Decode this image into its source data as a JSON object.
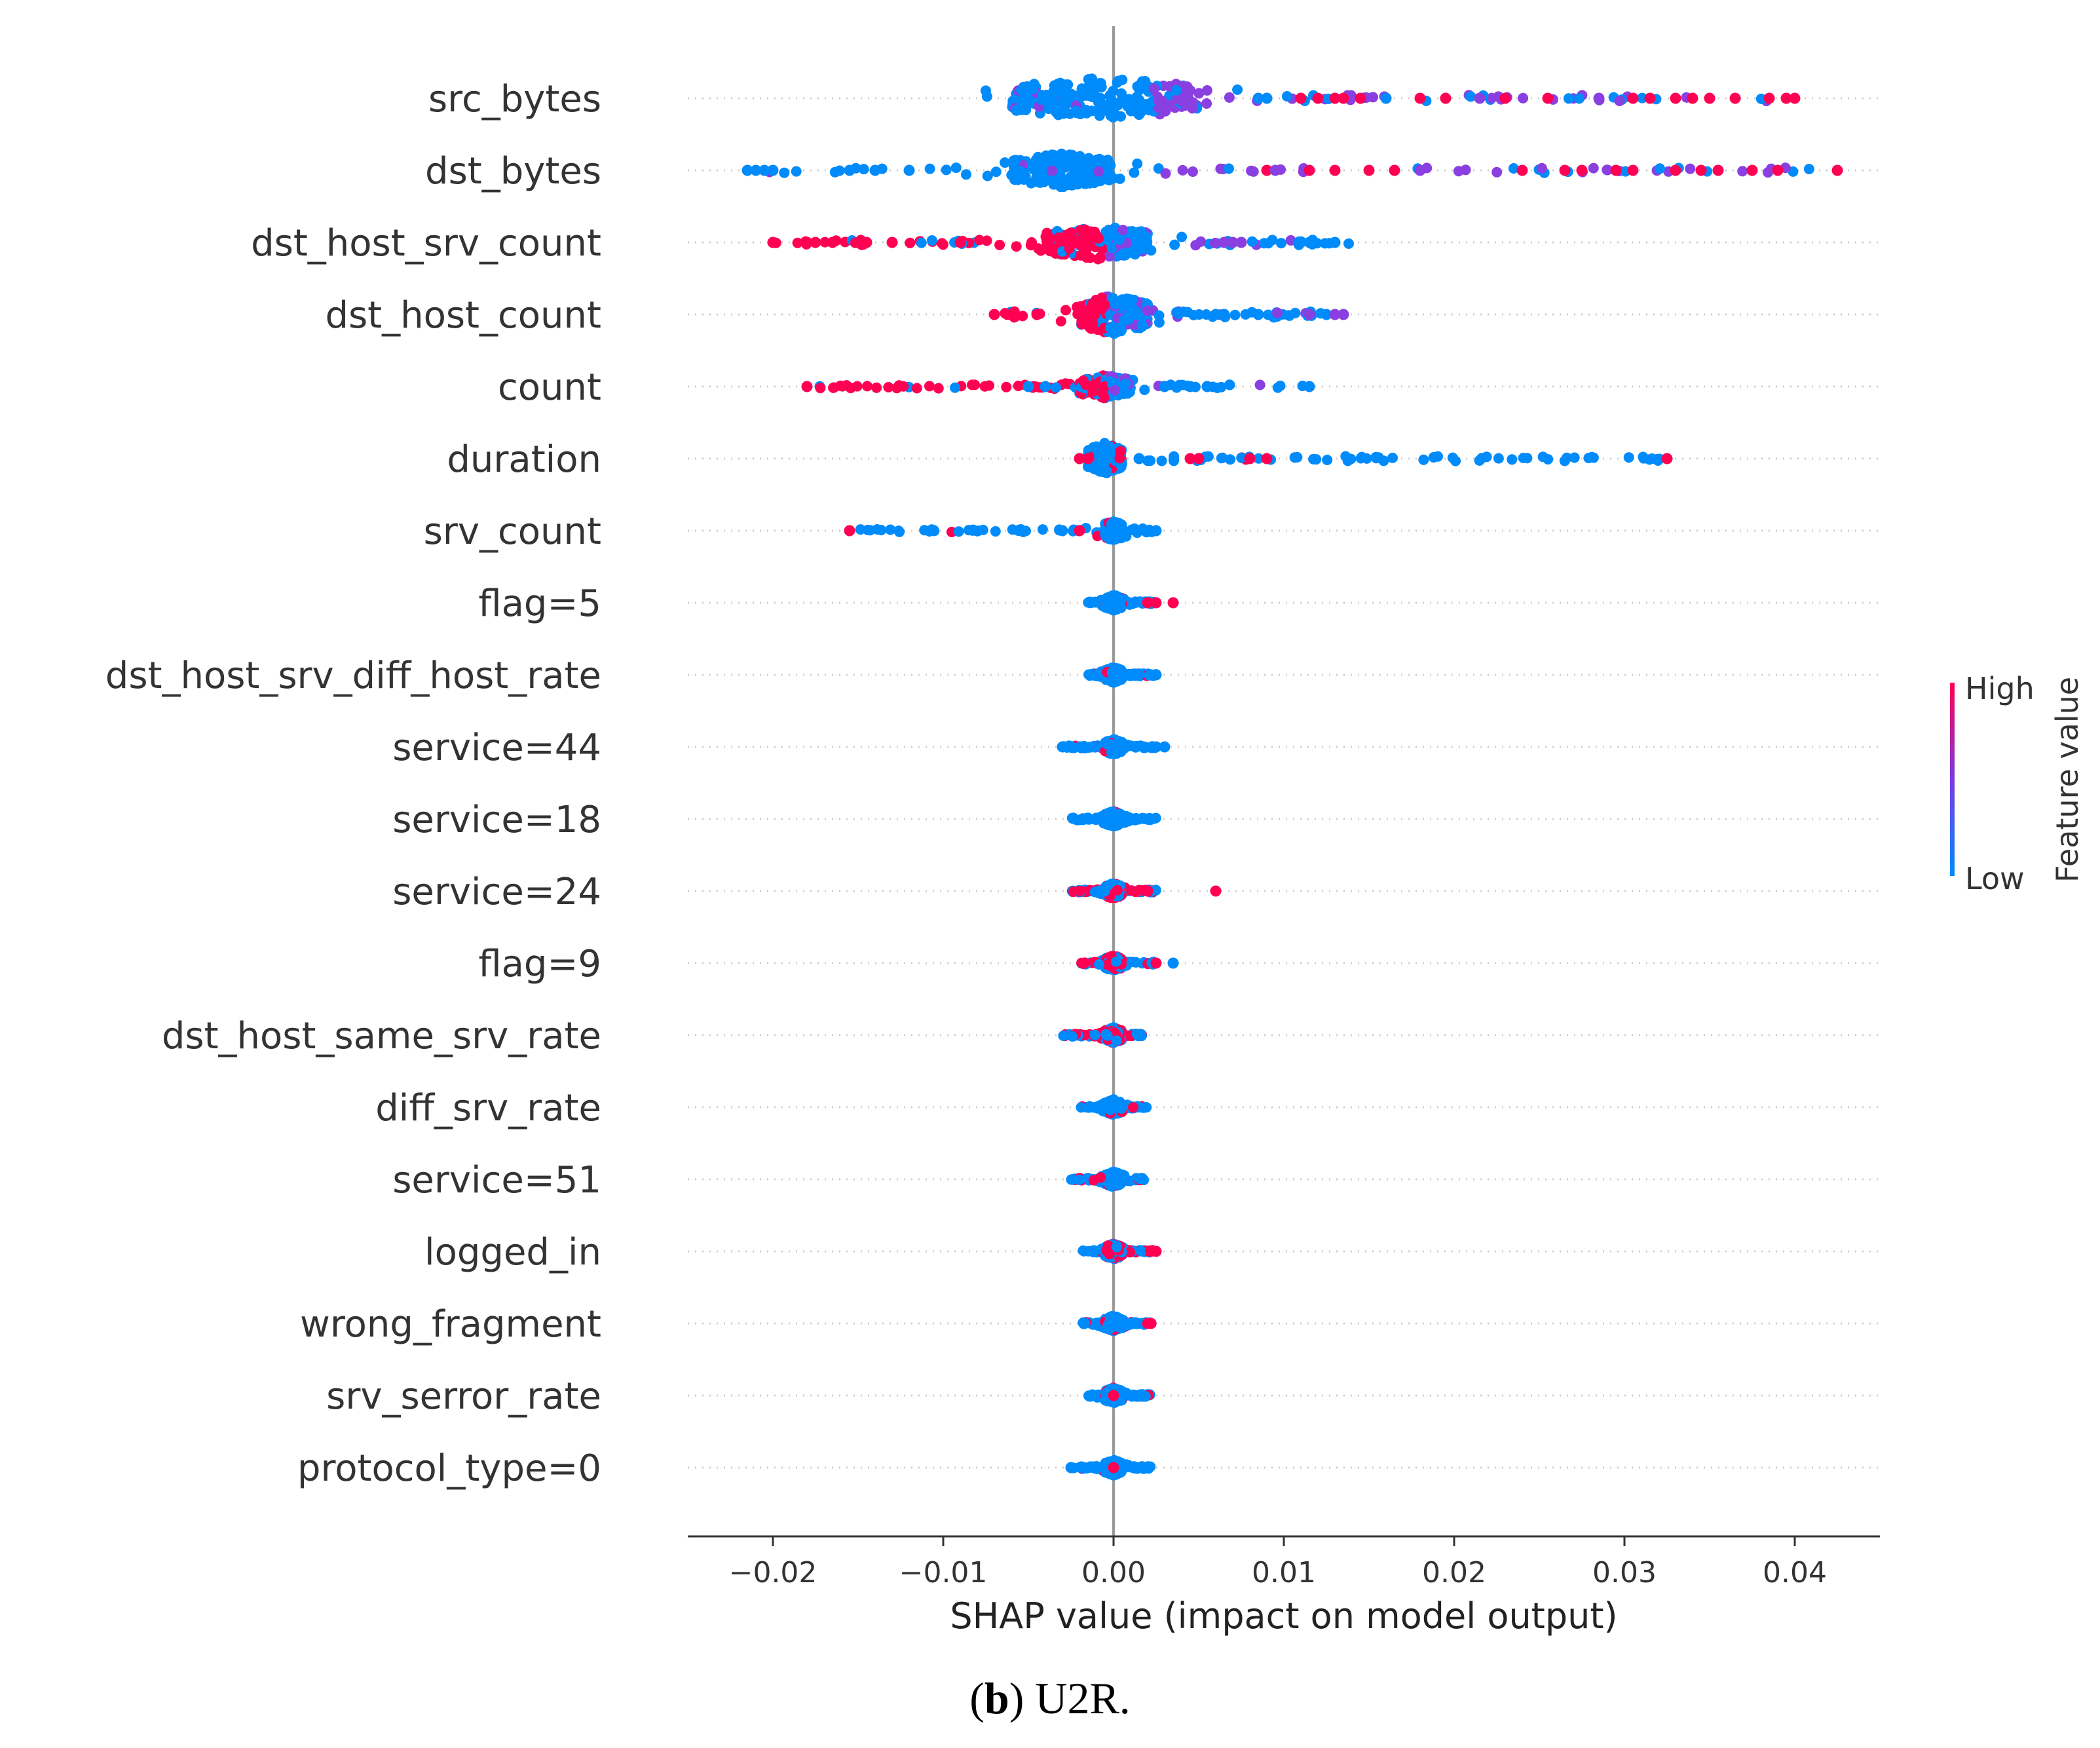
{
  "chart_data": {
    "type": "scatter",
    "subtype": "shap-beeswarm",
    "caption_bold": "b",
    "caption_rest": ") U2R.",
    "caption_open": "(",
    "xlabel": "SHAP value (impact on model output)",
    "xlim": [
      -0.025,
      0.045
    ],
    "xticks": [
      -0.02,
      -0.01,
      0.0,
      0.01,
      0.02,
      0.03,
      0.04
    ],
    "xtick_labels": [
      "−0.02",
      "−0.01",
      "0.00",
      "0.01",
      "0.02",
      "0.03",
      "0.04"
    ],
    "colorbar": {
      "label": "Feature value",
      "high": "High",
      "low": "Low",
      "high_color": "#ff0052",
      "low_color": "#008bfb"
    },
    "features": [
      {
        "name": "src_bytes",
        "min": -0.009,
        "max": 0.04,
        "lo": -0.006,
        "hi": 0.005,
        "spread": 32,
        "extras": [
          [
            0.011,
            "h"
          ],
          [
            0.012,
            "h"
          ],
          [
            0.013,
            "h"
          ],
          [
            0.0135,
            "h"
          ],
          [
            0.0145,
            "h"
          ],
          [
            0.016,
            "l"
          ],
          [
            0.018,
            "h"
          ],
          [
            0.0195,
            "h"
          ],
          [
            0.0215,
            "m"
          ],
          [
            0.023,
            "h"
          ],
          [
            0.0255,
            "h"
          ],
          [
            0.0285,
            "m"
          ],
          [
            0.0305,
            "h"
          ],
          [
            0.0315,
            "h"
          ],
          [
            0.033,
            "h"
          ],
          [
            0.034,
            "h"
          ],
          [
            0.035,
            "h"
          ],
          [
            0.0365,
            "h"
          ],
          [
            0.0385,
            "h"
          ],
          [
            0.0395,
            "h"
          ],
          [
            0.04,
            "h"
          ],
          [
            0.0085,
            "l"
          ],
          [
            0.009,
            "l"
          ]
        ]
      },
      {
        "name": "dst_bytes",
        "min": -0.021,
        "max": 0.042,
        "lo": -0.006,
        "hi": 0.0,
        "spread": 26,
        "extras": [
          [
            -0.0215,
            "l"
          ],
          [
            -0.021,
            "l"
          ],
          [
            -0.0205,
            "l"
          ],
          [
            -0.02,
            "l"
          ],
          [
            -0.0155,
            "l"
          ],
          [
            -0.014,
            "l"
          ],
          [
            -0.012,
            "l"
          ],
          [
            0.009,
            "h"
          ],
          [
            0.0095,
            "m"
          ],
          [
            0.0115,
            "h"
          ],
          [
            0.013,
            "h"
          ],
          [
            0.015,
            "h"
          ],
          [
            0.0165,
            "h"
          ],
          [
            0.018,
            "m"
          ],
          [
            0.024,
            "h"
          ],
          [
            0.0265,
            "h"
          ],
          [
            0.0275,
            "h"
          ],
          [
            0.0295,
            "h"
          ],
          [
            0.0305,
            "h"
          ],
          [
            0.033,
            "h"
          ],
          [
            0.0345,
            "h"
          ],
          [
            0.0355,
            "h"
          ],
          [
            0.0375,
            "h"
          ],
          [
            0.039,
            "h"
          ],
          [
            0.0425,
            "h"
          ]
        ]
      },
      {
        "name": "dst_host_srv_count",
        "min": -0.02,
        "max": 0.014,
        "lo": -0.004,
        "hi": 0.002,
        "spread": 26,
        "neg": "h",
        "extras": [
          [
            -0.02,
            "h"
          ],
          [
            -0.018,
            "h"
          ],
          [
            -0.0175,
            "h"
          ],
          [
            -0.0165,
            "h"
          ],
          [
            -0.0145,
            "h"
          ],
          [
            -0.013,
            "h"
          ],
          [
            -0.009,
            "h"
          ],
          [
            0.0065,
            "m"
          ],
          [
            0.007,
            "m"
          ],
          [
            0.0075,
            "m"
          ],
          [
            0.0115,
            "l"
          ],
          [
            0.013,
            "l"
          ]
        ]
      },
      {
        "name": "dst_host_count",
        "min": -0.007,
        "max": 0.0135,
        "lo": -0.002,
        "hi": 0.002,
        "spread": 30,
        "neg": "h",
        "extras": [
          [
            -0.007,
            "h"
          ],
          [
            -0.006,
            "h"
          ],
          [
            -0.0045,
            "h"
          ],
          [
            0.006,
            "l"
          ],
          [
            0.0065,
            "l"
          ],
          [
            0.0085,
            "l"
          ],
          [
            0.0115,
            "m"
          ],
          [
            0.0125,
            "l"
          ],
          [
            0.013,
            "m"
          ],
          [
            0.0135,
            "m"
          ]
        ]
      },
      {
        "name": "count",
        "min": -0.018,
        "max": 0.0115,
        "lo": -0.002,
        "hi": 0.001,
        "spread": 18,
        "neg": "h",
        "extras": [
          [
            -0.018,
            "h"
          ],
          [
            -0.005,
            "l"
          ],
          [
            -0.004,
            "l"
          ],
          [
            0.003,
            "l"
          ],
          [
            0.0045,
            "l"
          ],
          [
            0.0055,
            "l"
          ],
          [
            0.0115,
            "l"
          ]
        ]
      },
      {
        "name": "duration",
        "min": -0.002,
        "max": 0.0325,
        "lo": -0.0015,
        "hi": 0.0005,
        "spread": 24,
        "extras": [
          [
            -0.002,
            "h"
          ],
          [
            -0.0015,
            "h"
          ],
          [
            0.0015,
            "l"
          ],
          [
            0.0045,
            "h"
          ],
          [
            0.005,
            "h"
          ],
          [
            0.008,
            "h"
          ],
          [
            0.009,
            "h"
          ],
          [
            0.0325,
            "h"
          ]
        ]
      },
      {
        "name": "srv_count",
        "min": -0.0155,
        "max": 0.0025,
        "lo": -0.001,
        "hi": 0.001,
        "spread": 14,
        "extras": [
          [
            -0.0155,
            "h"
          ],
          [
            -0.003,
            "l"
          ],
          [
            -0.002,
            "h"
          ],
          [
            0.0025,
            "l"
          ]
        ]
      },
      {
        "name": "flag=5",
        "min": -0.0015,
        "max": 0.0035,
        "lo": -0.0005,
        "hi": 0.0005,
        "spread": 12,
        "extras": [
          [
            0.002,
            "h"
          ],
          [
            0.0025,
            "h"
          ],
          [
            0.0035,
            "h"
          ]
        ]
      },
      {
        "name": "dst_host_srv_diff_host_rate",
        "min": -0.0015,
        "max": 0.0025,
        "lo": -0.0005,
        "hi": 0.0005,
        "spread": 12,
        "extras": [
          [
            0.0025,
            "l"
          ]
        ]
      },
      {
        "name": "service=44",
        "min": -0.003,
        "max": 0.003,
        "lo": -0.0005,
        "hi": 0.0005,
        "spread": 12,
        "extras": [
          [
            -0.003,
            "l"
          ],
          [
            0.0025,
            "l"
          ],
          [
            0.003,
            "l"
          ]
        ]
      },
      {
        "name": "service=18",
        "min": -0.0025,
        "max": 0.0025,
        "lo": -0.0005,
        "hi": 0.0005,
        "spread": 12,
        "extras": [
          [
            0.0022,
            "l"
          ]
        ]
      },
      {
        "name": "service=24",
        "min": -0.0025,
        "max": 0.006,
        "lo": -0.0005,
        "hi": 0.0005,
        "spread": 12,
        "mix": "h",
        "extras": [
          [
            0.006,
            "h"
          ],
          [
            0.002,
            "h"
          ]
        ]
      },
      {
        "name": "flag=9",
        "min": -0.002,
        "max": 0.0035,
        "lo": -0.0005,
        "hi": 0.0005,
        "spread": 12,
        "mix": "h",
        "extras": [
          [
            0.0035,
            "l"
          ],
          [
            0.0025,
            "h"
          ]
        ]
      },
      {
        "name": "dst_host_same_srv_rate",
        "min": -0.003,
        "max": 0.0018,
        "lo": -0.0005,
        "hi": 0.0005,
        "spread": 12,
        "mix": "h",
        "extras": []
      },
      {
        "name": "diff_srv_rate",
        "min": -0.002,
        "max": 0.002,
        "lo": -0.0005,
        "hi": 0.0005,
        "spread": 12,
        "extras": []
      },
      {
        "name": "service=51",
        "min": -0.0025,
        "max": 0.0018,
        "lo": -0.0005,
        "hi": 0.0005,
        "spread": 12,
        "extras": []
      },
      {
        "name": "logged_in",
        "min": -0.002,
        "max": 0.0025,
        "lo": -0.0005,
        "hi": 0.0005,
        "spread": 12,
        "mix": "h",
        "extras": [
          [
            0.0025,
            "h"
          ]
        ]
      },
      {
        "name": "wrong_fragment",
        "min": -0.0018,
        "max": 0.0022,
        "lo": -0.0005,
        "hi": 0.0005,
        "spread": 12,
        "extras": [
          [
            0.002,
            "h"
          ],
          [
            0.0022,
            "h"
          ]
        ]
      },
      {
        "name": "srv_serror_rate",
        "min": -0.0015,
        "max": 0.0022,
        "lo": -0.0005,
        "hi": 0.0005,
        "spread": 12,
        "extras": [
          [
            0.0,
            "h"
          ]
        ]
      },
      {
        "name": "protocol_type=0",
        "min": -0.0025,
        "max": 0.0022,
        "lo": -0.0005,
        "hi": 0.0005,
        "spread": 12,
        "extras": [
          [
            -0.0025,
            "l"
          ],
          [
            0.0,
            "h"
          ]
        ]
      }
    ]
  }
}
